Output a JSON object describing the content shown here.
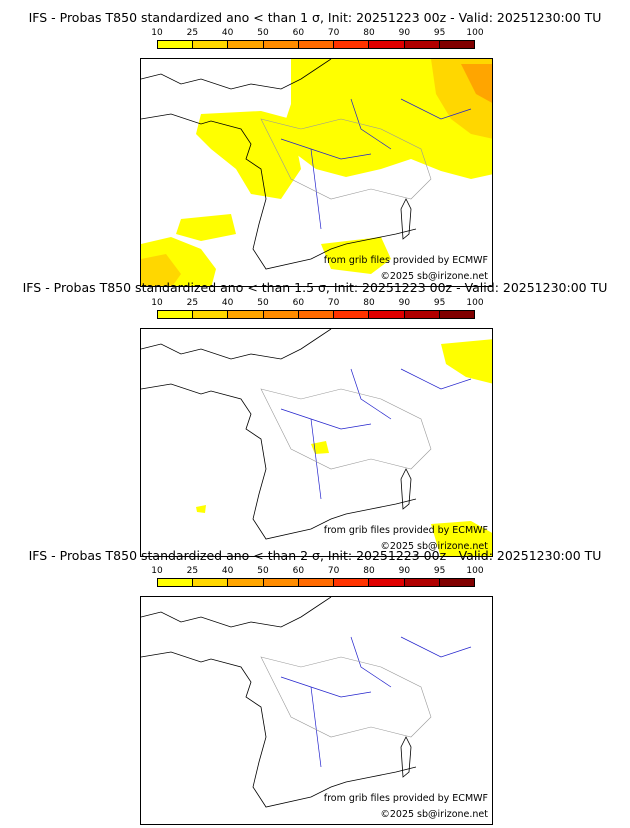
{
  "legend": {
    "ticks": [
      "10",
      "25",
      "40",
      "50",
      "60",
      "70",
      "80",
      "90",
      "95",
      "100"
    ],
    "colors": [
      "#ffff00",
      "#ffd700",
      "#ffa500",
      "#ff8c00",
      "#ff6a00",
      "#ff3300",
      "#e00000",
      "#b00000",
      "#800000"
    ]
  },
  "panels": [
    {
      "title": "IFS - Probas T850  standardized ano < than 1 σ, Init: 20251223 00z - Valid: 20251230:00 TU",
      "credit_source": "from grib files provided by ECMWF",
      "credit_copyright": "©2025 sb@irizone.net"
    },
    {
      "title": "IFS - Probas T850  standardized ano < than 1.5 σ, Init: 20251223 00z - Valid: 20251230:00 TU",
      "credit_source": "from grib files provided by ECMWF",
      "credit_copyright": "©2025 sb@irizone.net"
    },
    {
      "title": "IFS - Probas T850  standardized ano < than 2 σ, Init: 20251223 00z - Valid: 20251230:00 TU",
      "credit_source": "from grib files provided by ECMWF",
      "credit_copyright": "©2025 sb@irizone.net"
    }
  ],
  "colors": {
    "coast": "#000000",
    "rivers": "#2222cc",
    "borders": "#999999",
    "prob_low": "#ffff00",
    "prob_mid": "#ffd700",
    "prob_high": "#ffa500"
  }
}
